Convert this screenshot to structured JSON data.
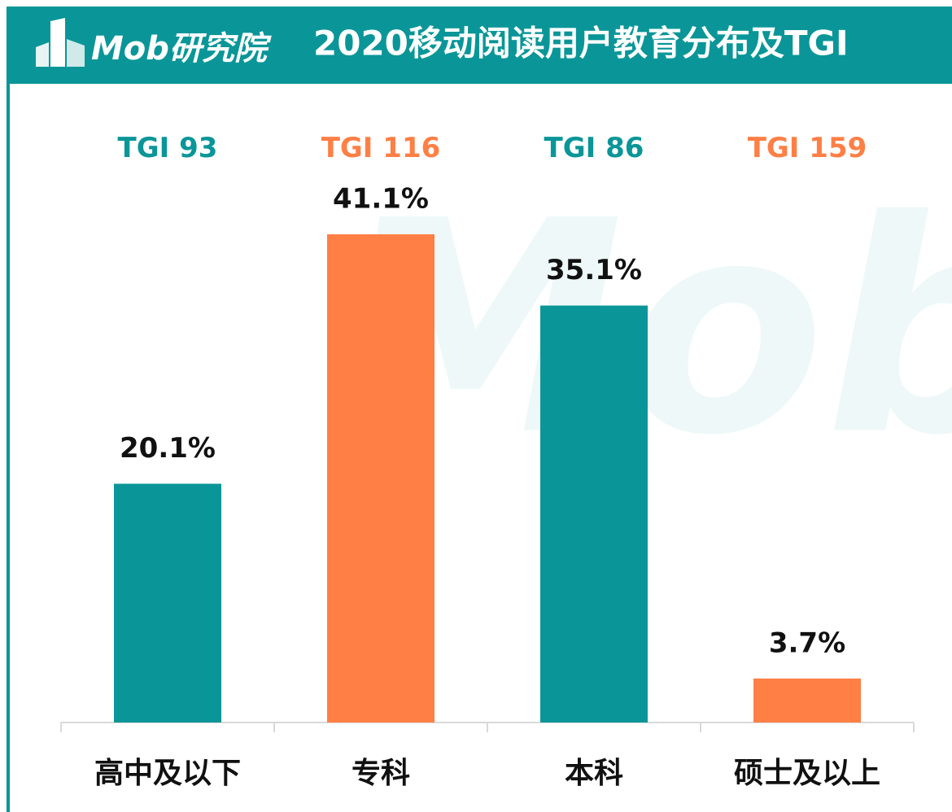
{
  "chart_data": {
    "type": "bar",
    "logo": "Mob研究院",
    "title": "2020移动阅读用户教育分布及TGI",
    "watermark": "Mob",
    "categories": [
      "高中及以下",
      "专科",
      "本科",
      "硕士及以上"
    ],
    "values": [
      20.1,
      41.1,
      35.1,
      3.7
    ],
    "value_labels": [
      "20.1%",
      "41.1%",
      "35.1%",
      "3.7%"
    ],
    "colors": [
      "#0a9698",
      "#ff7f45",
      "#0a9698",
      "#ff7f45"
    ],
    "tgi": {
      "name": "TGI",
      "values": [
        93,
        116,
        86,
        159
      ]
    },
    "ylim": [
      0,
      50
    ]
  }
}
